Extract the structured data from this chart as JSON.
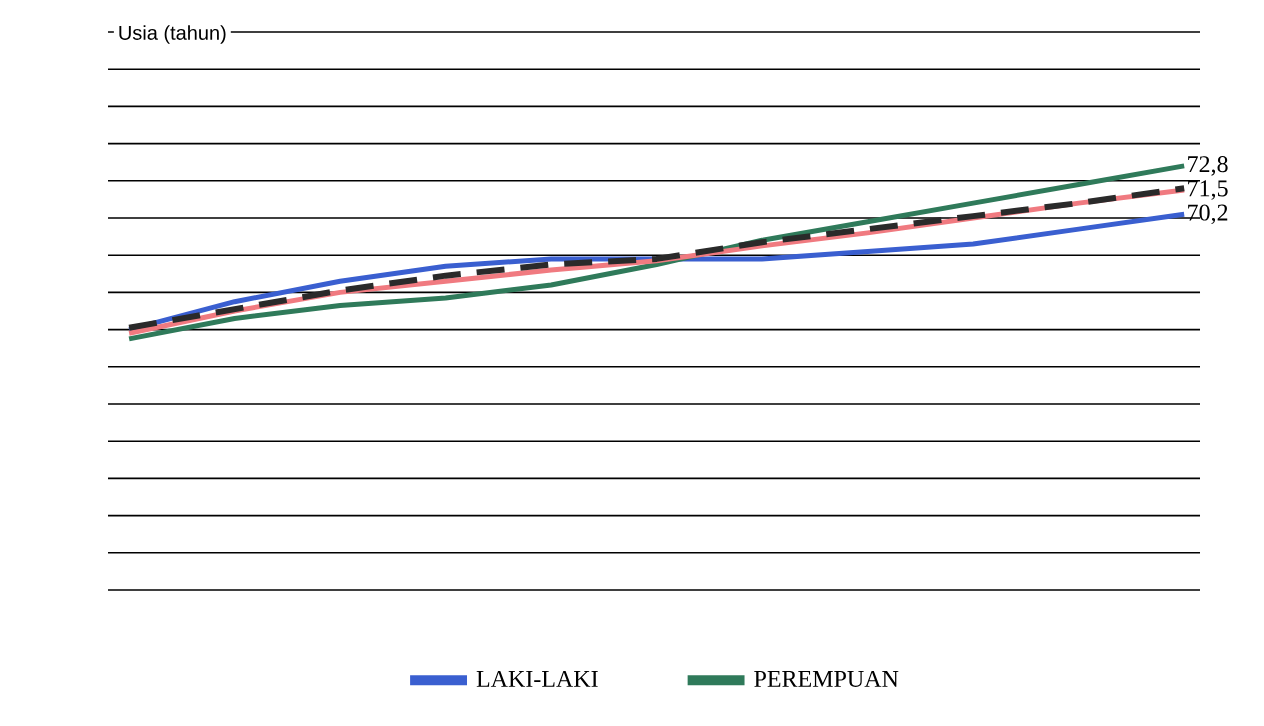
{
  "chart_data": {
    "type": "line",
    "ylabel": "Usia (tahun)",
    "categories": [
      null,
      null,
      null,
      null,
      null,
      null,
      null,
      null,
      null,
      null,
      null
    ],
    "series": [
      {
        "name": "LAKI-LAKI",
        "color": "#3a5fd0",
        "values": [
          64.0,
          65.5,
          66.6,
          67.4,
          67.8,
          67.8,
          67.8,
          68.2,
          68.6,
          69.4,
          70.2
        ],
        "value_labels": [
          null,
          null,
          null,
          null,
          null,
          null,
          null,
          null,
          null,
          null,
          "70,2"
        ]
      },
      {
        "name": "PEREMPUAN",
        "color": "#2f7a5a",
        "values": [
          63.5,
          64.6,
          65.3,
          65.7,
          66.4,
          67.5,
          68.8,
          69.8,
          70.8,
          71.8,
          72.8
        ],
        "value_labels": [
          null,
          null,
          null,
          null,
          null,
          null,
          null,
          null,
          null,
          null,
          "72,8"
        ]
      },
      {
        "color": "#f07a80",
        "values": [
          63.8,
          65.0,
          66.0,
          66.6,
          67.2,
          67.7,
          68.5,
          69.2,
          70.0,
          70.8,
          71.5
        ],
        "value_labels": [
          null,
          null,
          null,
          null,
          null,
          null,
          null,
          null,
          null,
          null,
          "71,5"
        ]
      },
      {
        "color": "#2a2a2a",
        "line_style": "dashed",
        "values": [
          64.1,
          65.1,
          66.1,
          66.9,
          67.5,
          67.8,
          68.7,
          69.4,
          70.1,
          70.8,
          71.6
        ]
      }
    ],
    "ylim": [
      50,
      80
    ],
    "yticks": [
      {
        "value": 50,
        "label": null
      },
      {
        "value": 52,
        "label": null
      },
      {
        "value": 54,
        "label": null
      },
      {
        "value": 56,
        "label": null
      },
      {
        "value": 58,
        "label": null
      },
      {
        "value": 60,
        "label": null
      },
      {
        "value": 62,
        "label": null
      },
      {
        "value": 64,
        "label": null
      },
      {
        "value": 66,
        "label": null
      },
      {
        "value": 68,
        "label": null
      },
      {
        "value": 70,
        "label": null
      },
      {
        "value": 72,
        "label": null
      },
      {
        "value": 74,
        "label": null
      },
      {
        "value": 76,
        "label": null
      },
      {
        "value": 78,
        "label": null
      },
      {
        "value": 80,
        "label": null
      }
    ],
    "grid": "y",
    "legend": "bottom"
  }
}
